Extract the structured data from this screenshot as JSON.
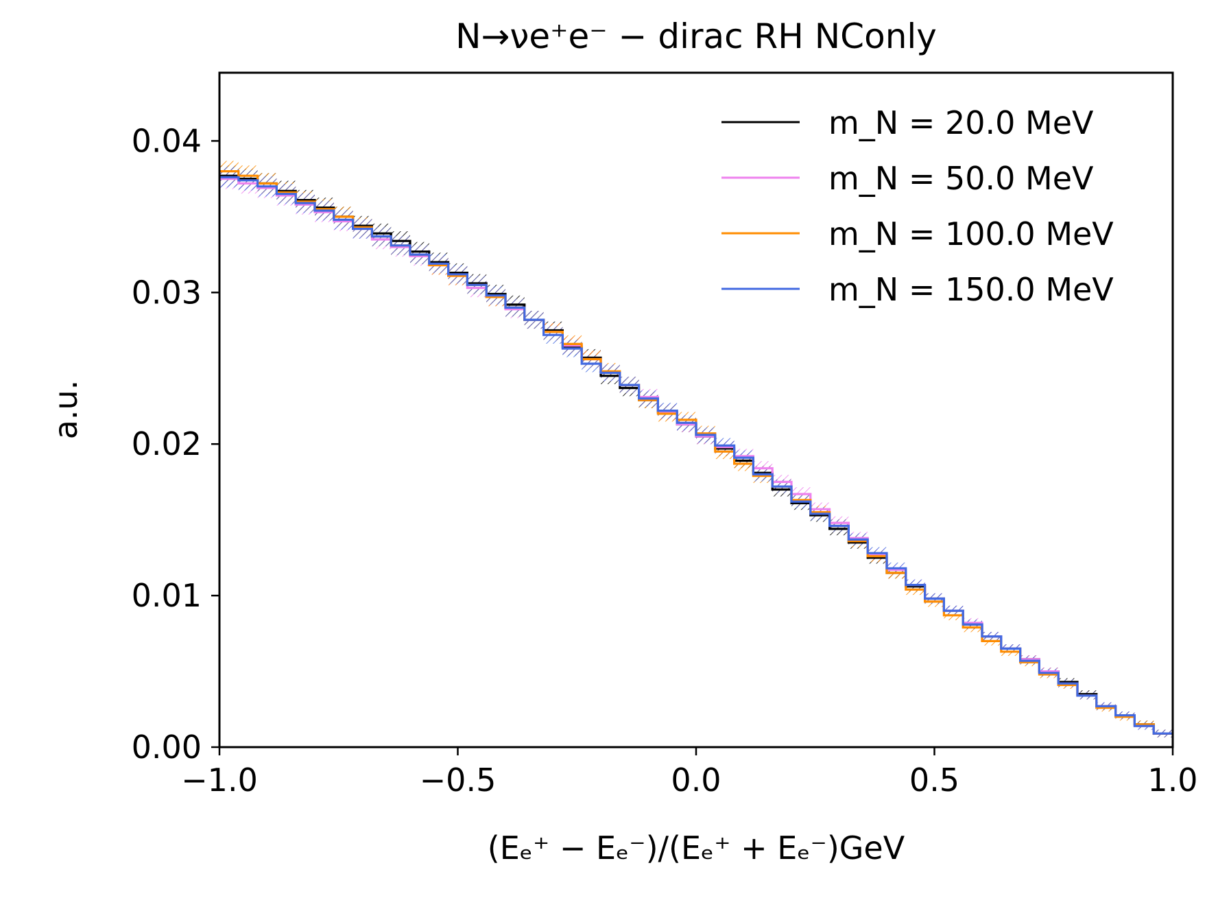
{
  "chart_data": {
    "type": "line",
    "drawstyle": "steps",
    "title": "N→νe⁺e⁻ − dirac RH NConly",
    "xlabel": "(Eₑ⁺ − Eₑ⁻)/(Eₑ⁺ + Eₑ⁻)GeV",
    "ylabel": "a.u.",
    "xlim": [
      -1.0,
      1.0
    ],
    "ylim": [
      0.0,
      0.0445
    ],
    "xticks": [
      -1.0,
      -0.5,
      0.0,
      0.5,
      1.0
    ],
    "xtick_labels": [
      "−1.0",
      "−0.5",
      "0.0",
      "0.5",
      "1.0"
    ],
    "yticks": [
      0.0,
      0.01,
      0.02,
      0.03,
      0.04
    ],
    "ytick_labels": [
      "0.00",
      "0.01",
      "0.02",
      "0.03",
      "0.04"
    ],
    "grid": false,
    "legend_position": "top-right",
    "error_bands": "hatched",
    "bin_edges": [
      -1.0,
      -0.96,
      -0.92,
      -0.88,
      -0.84,
      -0.8,
      -0.76,
      -0.72,
      -0.68,
      -0.64,
      -0.6,
      -0.56,
      -0.52,
      -0.48,
      -0.44,
      -0.4,
      -0.36,
      -0.32,
      -0.28,
      -0.24,
      -0.2,
      -0.16,
      -0.12,
      -0.08,
      -0.04,
      0.0,
      0.04,
      0.08,
      0.12,
      0.16,
      0.2,
      0.24,
      0.28,
      0.32,
      0.36,
      0.4,
      0.44,
      0.48,
      0.52,
      0.56,
      0.6,
      0.64,
      0.68,
      0.72,
      0.76,
      0.8,
      0.84,
      0.88,
      0.92,
      0.96,
      1.0
    ],
    "series": [
      {
        "name": "m_N = 20.0 MeV",
        "color": "#000000",
        "values": [
          0.0377,
          0.0375,
          0.0372,
          0.0367,
          0.0361,
          0.0356,
          0.035,
          0.0344,
          0.0339,
          0.0334,
          0.0327,
          0.032,
          0.0313,
          0.0306,
          0.0299,
          0.0292,
          0.0282,
          0.0275,
          0.0264,
          0.0257,
          0.0245,
          0.0237,
          0.0229,
          0.0221,
          0.0213,
          0.0205,
          0.0197,
          0.0189,
          0.0181,
          0.017,
          0.0161,
          0.0153,
          0.0144,
          0.0135,
          0.0125,
          0.0115,
          0.0106,
          0.0098,
          0.009,
          0.0081,
          0.0073,
          0.0065,
          0.0058,
          0.005,
          0.0043,
          0.0035,
          0.0027,
          0.0021,
          0.0015,
          0.0009
        ]
      },
      {
        "name": "m_N = 50.0 MeV",
        "color": "#ee82ee",
        "values": [
          0.0375,
          0.0372,
          0.0369,
          0.0364,
          0.0358,
          0.0353,
          0.0347,
          0.0342,
          0.0335,
          0.033,
          0.0324,
          0.0318,
          0.0311,
          0.0303,
          0.0297,
          0.0289,
          0.0282,
          0.0274,
          0.0265,
          0.0256,
          0.0247,
          0.0239,
          0.0231,
          0.0221,
          0.0213,
          0.0205,
          0.0198,
          0.0192,
          0.0184,
          0.0175,
          0.0167,
          0.0157,
          0.0148,
          0.0138,
          0.0127,
          0.0117,
          0.0107,
          0.0098,
          0.009,
          0.0082,
          0.0073,
          0.0065,
          0.0058,
          0.005,
          0.0042,
          0.0034,
          0.0027,
          0.0021,
          0.0014,
          0.0009
        ]
      },
      {
        "name": "m_N = 100.0 MeV",
        "color": "#ff8c00",
        "values": [
          0.038,
          0.0377,
          0.0372,
          0.0366,
          0.036,
          0.0355,
          0.035,
          0.0343,
          0.0337,
          0.0331,
          0.0325,
          0.0318,
          0.0311,
          0.0305,
          0.0297,
          0.029,
          0.0282,
          0.0274,
          0.0266,
          0.0256,
          0.0248,
          0.0239,
          0.0229,
          0.022,
          0.0216,
          0.0207,
          0.0195,
          0.0187,
          0.0179,
          0.0172,
          0.0163,
          0.0155,
          0.0146,
          0.0136,
          0.0126,
          0.0115,
          0.0104,
          0.0096,
          0.0087,
          0.0079,
          0.007,
          0.0063,
          0.0056,
          0.0048,
          0.0041,
          0.0034,
          0.0026,
          0.002,
          0.0015,
          0.0009
        ]
      },
      {
        "name": "m_N = 150.0 MeV",
        "color": "#4169e1",
        "values": [
          0.0376,
          0.0374,
          0.037,
          0.0365,
          0.0359,
          0.0354,
          0.0348,
          0.0342,
          0.0337,
          0.0331,
          0.0325,
          0.0319,
          0.0312,
          0.0305,
          0.0298,
          0.029,
          0.0282,
          0.0272,
          0.0263,
          0.0253,
          0.0247,
          0.0239,
          0.023,
          0.0222,
          0.0214,
          0.0206,
          0.0199,
          0.0191,
          0.018,
          0.0172,
          0.0162,
          0.0154,
          0.0146,
          0.0137,
          0.0128,
          0.0118,
          0.0107,
          0.0098,
          0.009,
          0.0081,
          0.0073,
          0.0065,
          0.0057,
          0.0049,
          0.0042,
          0.0034,
          0.0027,
          0.0021,
          0.0014,
          0.0009
        ]
      }
    ]
  }
}
